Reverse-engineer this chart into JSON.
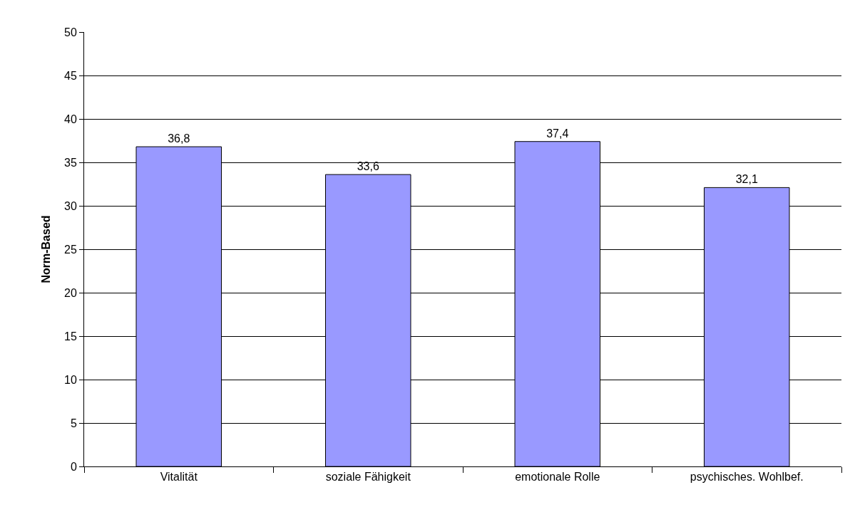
{
  "chart_data": {
    "type": "bar",
    "ylabel": "Norm-Based",
    "categories": [
      "Vitalität",
      "soziale Fähigkeit",
      "emotionale Rolle",
      "psychisches. Wohlbef."
    ],
    "values": [
      36.8,
      33.6,
      37.4,
      32.1
    ],
    "value_labels": [
      "36,8",
      "33,6",
      "37,4",
      "32,1"
    ],
    "color": "#9999ff",
    "ylim": [
      0,
      50
    ],
    "yticks": [
      0,
      5,
      10,
      15,
      20,
      25,
      30,
      35,
      40,
      45,
      50
    ],
    "grid": "y",
    "legend": false
  }
}
